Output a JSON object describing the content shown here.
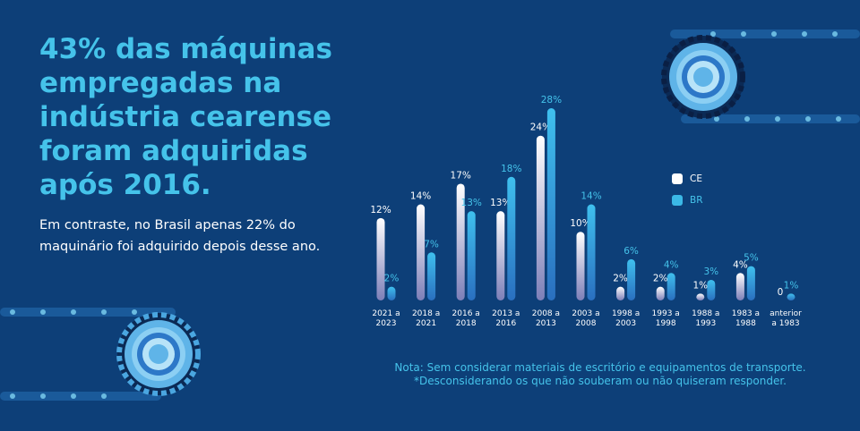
{
  "headline": "43% das máquinas empregadas na indústria cearense foram adquiridas após 2016.",
  "subtext": "Em contraste, no Brasil apenas 22% do maquinário foi adquirido depois desse ano.",
  "note": {
    "line1": "Nota: Sem considerar materiais de escritório e equipamentos de transporte.",
    "line2": "*Desconsiderando os que não souberam ou não quiseram responder."
  },
  "colors": {
    "background": "#0d3f78",
    "accent": "#45c3ea",
    "ce": "#ffffff",
    "br": "#3bb8e6"
  },
  "chart_data": {
    "type": "bar",
    "categories": [
      [
        "2021 a",
        "2023"
      ],
      [
        "2018 a",
        "2021"
      ],
      [
        "2016 a",
        "2018"
      ],
      [
        "2013 a",
        "2016"
      ],
      [
        "2008 a",
        "2013"
      ],
      [
        "2003 a",
        "2008"
      ],
      [
        "1998 a",
        "2003"
      ],
      [
        "1993 a",
        "1998"
      ],
      [
        "1988 a",
        "1993"
      ],
      [
        "1983 a",
        "1988"
      ],
      [
        "anterior",
        "a 1983"
      ]
    ],
    "series": [
      {
        "name": "CE",
        "values": [
          12,
          14,
          17,
          13,
          24,
          10,
          2,
          2,
          1,
          4,
          0
        ],
        "labels": [
          "12%",
          "14%",
          "17%",
          "13%",
          "24%",
          "10%",
          "2%",
          "2%",
          "1%",
          "4%",
          "0"
        ]
      },
      {
        "name": "BR",
        "values": [
          2,
          7,
          13,
          18,
          28,
          14,
          6,
          4,
          3,
          5,
          1
        ],
        "labels": [
          "2%",
          "7%",
          "13%",
          "18%",
          "28%",
          "14%",
          "6%",
          "4%",
          "3%",
          "5%",
          "1%"
        ]
      }
    ],
    "ylim": [
      0,
      28
    ],
    "legend": "top-right"
  }
}
